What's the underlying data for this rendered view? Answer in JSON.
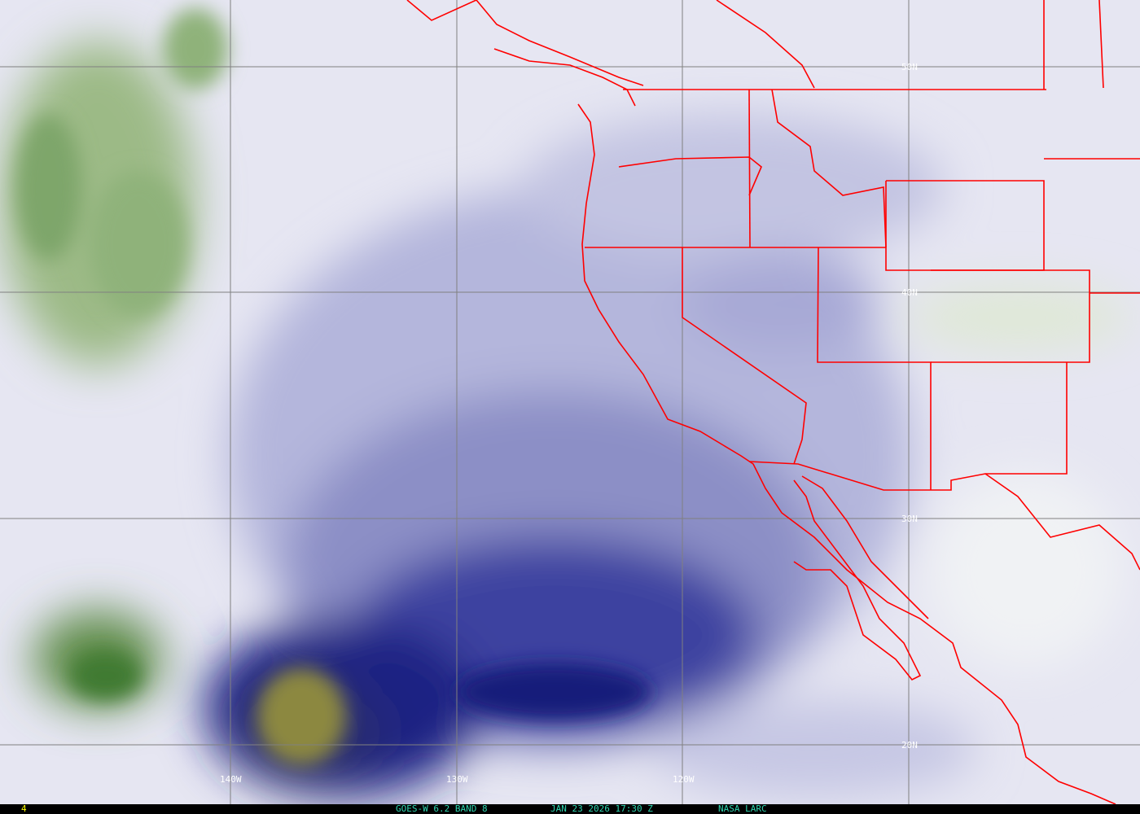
{
  "image": {
    "satellite": "GOES-W",
    "channel": "6.2 BAND 8",
    "date": "JAN 23 2026",
    "time": "17:30 Z",
    "credit": "NASA LARC",
    "frame_number": "4"
  },
  "grid": {
    "longitude_labels": [
      "140W",
      "130W",
      "120W"
    ],
    "latitude_labels": [
      "50N",
      "40N",
      "30N",
      "20N"
    ]
  },
  "colors": {
    "border_lines": "#ff0000",
    "grid_lines": "#808080",
    "moist": "#f2f2f8",
    "mid": "#9a9ccc",
    "dry": "#1a1f7a",
    "very_dry": "#8f8a3a",
    "cold_cloud": "#6f9a55",
    "info_text": "#2fd6b0",
    "frame_text": "#ffff00"
  }
}
